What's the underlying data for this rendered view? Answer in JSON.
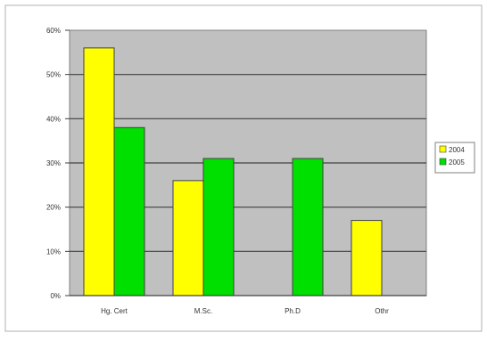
{
  "chart_data": {
    "type": "bar",
    "categories": [
      "Hg. Cert",
      "M.Sc.",
      "Ph.D",
      "Othr"
    ],
    "series": [
      {
        "name": "2004",
        "values": [
          56,
          26,
          0,
          17
        ],
        "color": "#ffff00"
      },
      {
        "name": "2005",
        "values": [
          38,
          31,
          31,
          0
        ],
        "color": "#00e000"
      }
    ],
    "y_ticks": [
      "0%",
      "10%",
      "20%",
      "30%",
      "40%",
      "50%",
      "60%"
    ],
    "ylim": [
      0,
      60
    ],
    "y_unit": "%",
    "grid": true,
    "legend": "right",
    "plot_background": "#c0c0c0"
  }
}
